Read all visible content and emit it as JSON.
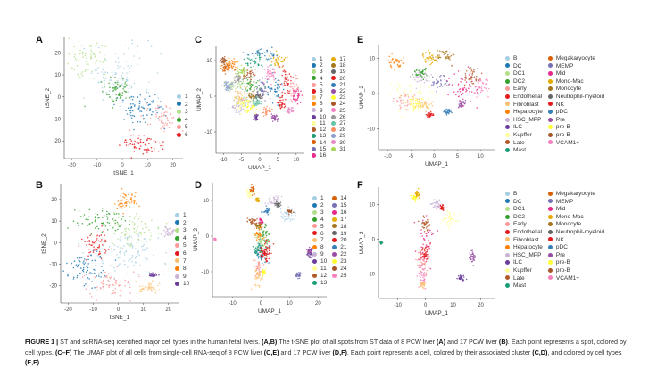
{
  "panels": {
    "A": "A",
    "B": "B",
    "C": "C",
    "D": "D",
    "E": "E",
    "F": "F"
  },
  "palette": [
    "#a6cee3",
    "#1f78b4",
    "#b2df8a",
    "#33a02c",
    "#fb9a99",
    "#e31a1c",
    "#fdbf6f",
    "#ff7f00",
    "#cab2d6",
    "#6a3d9a",
    "#ffff99",
    "#b15928",
    "#1b9e77",
    "#d95f02",
    "#7570b3",
    "#e7298a",
    "#e6ab02",
    "#a6761d",
    "#666666",
    "#e41a1c",
    "#377eb8",
    "#984ea3",
    "#ffff33",
    "#a65628",
    "#f781bf",
    "#999999",
    "#66c2a5",
    "#fc8d62",
    "#8da0cb",
    "#e78ac3",
    "#a6d854"
  ],
  "legends": {
    "A": [
      "1",
      "2",
      "3",
      "4",
      "5",
      "6"
    ],
    "B": [
      "1",
      "2",
      "3",
      "4",
      "5",
      "6",
      "7",
      "8",
      "9",
      "10"
    ],
    "C": [
      "1",
      "2",
      "3",
      "4",
      "5",
      "6",
      "7",
      "8",
      "9",
      "10",
      "11",
      "12",
      "13",
      "14",
      "15",
      "16",
      "17",
      "18",
      "19",
      "20",
      "21",
      "22",
      "23",
      "24",
      "25",
      "26",
      "27",
      "28",
      "29",
      "30",
      "31"
    ],
    "D": [
      "1",
      "2",
      "3",
      "4",
      "5",
      "6",
      "7",
      "8",
      "9",
      "10",
      "11",
      "12",
      "13",
      "14",
      "15",
      "16",
      "17",
      "18",
      "19",
      "20",
      "21",
      "22",
      "23",
      "24",
      "25"
    ],
    "E": [
      "B",
      "DC",
      "DC1",
      "DC2",
      "Early",
      "Endothelial",
      "Fibroblast",
      "Hepatocyte",
      "HSC_MPP",
      "ILC",
      "Kupffer",
      "Late",
      "Mast",
      "Megakaryocyte",
      "MEMP",
      "Mid",
      "Mono-Mac",
      "Monocyte",
      "Neutrophil-myeloid",
      "NK",
      "pDC",
      "Pre",
      "pre-B",
      "pro-B",
      "VCAM1+"
    ],
    "F": [
      "B",
      "DC",
      "DC1",
      "DC2",
      "Early",
      "Endothelial",
      "Fibroblast",
      "Hepatocyte",
      "HSC_MPP",
      "ILC",
      "Kupffer",
      "Late",
      "Mast",
      "Megakaryocyte",
      "MEMP",
      "Mid",
      "Mono-Mac",
      "Monocyte",
      "Neutrophil-myeloid",
      "NK",
      "pDC",
      "Pre",
      "pre-B",
      "pro-B",
      "VCAM1+"
    ]
  },
  "chart_data": [
    {
      "panel": "A",
      "type": "scatter",
      "xlabel": "tSNE_1",
      "ylabel": "tSNE_2",
      "xlim": [
        -23,
        24
      ],
      "ylim": [
        -28,
        27
      ],
      "xticks": [
        -20,
        -10,
        0,
        10,
        20
      ],
      "yticks": [
        -20,
        -10,
        0,
        10,
        20
      ],
      "clusters": [
        [
          "1",
          -2,
          10,
          7,
          7
        ],
        [
          "2",
          8,
          -5,
          5,
          4
        ],
        [
          "3",
          -14,
          18,
          4,
          4
        ],
        [
          "4",
          -2,
          3,
          3,
          3
        ],
        [
          "5",
          17,
          -10,
          4,
          3
        ],
        [
          "6",
          8,
          -22,
          4,
          3
        ]
      ]
    },
    {
      "panel": "B",
      "type": "scatter",
      "xlabel": "tSNE_1",
      "ylabel": "tSNE_2",
      "xlim": [
        -23,
        24
      ],
      "ylim": [
        -28,
        27
      ],
      "xticks": [
        -20,
        -10,
        0,
        10,
        20
      ],
      "yticks": [
        -20,
        -10,
        0,
        10,
        20
      ],
      "clusters": [
        [
          "1",
          3,
          -5,
          7,
          6
        ],
        [
          "2",
          -12,
          -12,
          4,
          4
        ],
        [
          "3",
          6,
          7,
          5,
          4
        ],
        [
          "4",
          -8,
          10,
          5,
          3
        ],
        [
          "5",
          -3,
          -19,
          5,
          3
        ],
        [
          "6",
          -9,
          -1,
          3,
          3
        ],
        [
          "7",
          12,
          -21,
          2.5,
          1.2
        ],
        [
          "8",
          3,
          19,
          2.5,
          2
        ],
        [
          "9",
          20,
          5,
          1,
          1
        ],
        [
          "10",
          14,
          -15,
          0.8,
          0.5
        ]
      ]
    },
    {
      "panel": "C",
      "type": "scatter",
      "xlabel": "UMAP_1",
      "ylabel": "UMAP_2",
      "xlim": [
        -12,
        12
      ],
      "ylim": [
        -16,
        14
      ],
      "xticks": [
        -10,
        -5,
        0,
        5,
        10
      ],
      "yticks": [
        -10,
        0,
        10
      ],
      "clusters": [
        [
          "1",
          -4,
          -1,
          1.5,
          1.5
        ],
        [
          "2",
          4,
          2,
          1,
          2
        ],
        [
          "3",
          -7,
          3,
          1.5,
          1
        ],
        [
          "4",
          -2,
          3,
          1.2,
          1.2
        ],
        [
          "5",
          9,
          3,
          1,
          2
        ],
        [
          "6",
          7,
          5,
          0.8,
          2
        ],
        [
          "7",
          -5,
          0,
          1.5,
          1.2
        ],
        [
          "8",
          -8,
          9,
          1,
          0.8
        ],
        [
          "9",
          -6,
          -3,
          1.2,
          1
        ],
        [
          "10",
          -1,
          -6,
          0.5,
          0.5
        ],
        [
          "11",
          -4,
          -2,
          1.5,
          1
        ],
        [
          "12",
          -3,
          6,
          1,
          1
        ],
        [
          "13",
          -1,
          10,
          1.5,
          1
        ],
        [
          "14",
          -9,
          8,
          0.8,
          0.6
        ],
        [
          "15",
          1,
          2,
          1,
          1.5
        ],
        [
          "16",
          10,
          0,
          0.7,
          1
        ],
        [
          "17",
          5,
          10,
          1,
          0.8
        ],
        [
          "18",
          -2,
          0,
          0.6,
          0.6
        ],
        [
          "19",
          0,
          0,
          0.5,
          0.5
        ],
        [
          "20",
          6,
          -2,
          0.6,
          0.8
        ],
        [
          "21",
          1,
          12,
          2,
          0.8
        ],
        [
          "22",
          4,
          -6,
          0.5,
          0.5
        ],
        [
          "23",
          -3,
          -3,
          1,
          1
        ],
        [
          "24",
          -10,
          10,
          0.5,
          0.5
        ],
        [
          "25",
          3,
          6,
          0.8,
          1.2
        ],
        [
          "26",
          -6,
          5,
          0.6,
          0.6
        ],
        [
          "27",
          -1,
          -2,
          0.6,
          0.6
        ],
        [
          "28",
          2,
          -4,
          0.6,
          0.6
        ],
        [
          "29",
          -9,
          3,
          0.8,
          0.8
        ],
        [
          "30",
          8,
          -4,
          0.5,
          0.5
        ],
        [
          "31",
          -5,
          7,
          0.6,
          0.6
        ]
      ]
    },
    {
      "panel": "D",
      "type": "scatter",
      "xlabel": "UMAP_1",
      "ylabel": "UMAP_2",
      "xlim": [
        -17,
        23
      ],
      "ylim": [
        -17,
        15
      ],
      "xticks": [
        -10,
        0,
        10,
        20
      ],
      "yticks": [
        -10,
        0,
        10
      ],
      "clusters": [
        [
          "1",
          9,
          6,
          1.5,
          1
        ],
        [
          "2",
          0,
          -6,
          1.2,
          2
        ],
        [
          "3",
          0,
          -1,
          1,
          1.5
        ],
        [
          "4",
          1,
          0,
          1,
          2
        ],
        [
          "5",
          -1,
          -9,
          0.8,
          1.5
        ],
        [
          "6",
          2,
          -4,
          0.8,
          1.5
        ],
        [
          "7",
          -1,
          -12,
          0.8,
          1.5
        ],
        [
          "8",
          -1,
          1,
          0.8,
          1.5
        ],
        [
          "9",
          4,
          10,
          1.2,
          0.8
        ],
        [
          "10",
          17,
          -5,
          0.6,
          0.8
        ],
        [
          "11",
          -4,
          12,
          0.6,
          0.6
        ],
        [
          "12",
          -3,
          4,
          0.8,
          0.5
        ],
        [
          "13",
          -1,
          -4,
          0.8,
          0.8
        ],
        [
          "14",
          -3,
          13,
          0.5,
          0.5
        ],
        [
          "15",
          13,
          -11,
          0.6,
          0.4
        ],
        [
          "16",
          0,
          4,
          0.3,
          0.4
        ],
        [
          "17",
          -1,
          10,
          0.4,
          0.3
        ],
        [
          "18",
          -1,
          3,
          0.5,
          0.4
        ],
        [
          "19",
          6,
          9,
          0.4,
          0.4
        ],
        [
          "20",
          1,
          -5,
          0.8,
          0.8
        ],
        [
          "21",
          2,
          7,
          0.6,
          0.5
        ],
        [
          "22",
          17,
          -4,
          0.4,
          0.4
        ],
        [
          "23",
          1,
          -10,
          0.3,
          0.3
        ],
        [
          "24",
          10,
          7,
          0.4,
          0.3
        ],
        [
          "25",
          -16,
          -1,
          0.2,
          0.2
        ]
      ]
    },
    {
      "panel": "E",
      "type": "scatter",
      "xlabel": "UMAP_1",
      "ylabel": "UMAP_2",
      "xlim": [
        -12,
        13
      ],
      "ylim": [
        -16,
        14
      ],
      "xticks": [
        -10,
        -5,
        0,
        5,
        10
      ],
      "yticks": [
        -10,
        0,
        10
      ],
      "clusters": [
        [
          "Kupffer",
          -5,
          0,
          2.5,
          2
        ],
        [
          "HSC_MPP",
          -3,
          5,
          1,
          1
        ],
        [
          "Mid",
          6,
          2,
          2,
          2.5
        ],
        [
          "Late",
          8,
          5,
          1,
          1.5
        ],
        [
          "Early",
          -6,
          -2,
          1.5,
          1.2
        ],
        [
          "Hepatocyte",
          -8,
          9,
          1,
          1
        ],
        [
          "pre-B",
          -4,
          -3,
          1,
          1
        ],
        [
          "Mono-Mac",
          -1,
          10,
          1,
          1
        ],
        [
          "Monocyte",
          2,
          11,
          1,
          0.8
        ],
        [
          "VCAM1+",
          10,
          2,
          0.8,
          1.2
        ],
        [
          "MEMP",
          1,
          3,
          1,
          1
        ],
        [
          "NK",
          -1,
          -6,
          0.4,
          0.4
        ],
        [
          "DC2",
          -3,
          6,
          0.8,
          0.8
        ],
        [
          "Fibroblast",
          -2,
          -3,
          0.8,
          0.8
        ],
        [
          "pDC",
          3,
          -5,
          0.4,
          0.4
        ],
        [
          "Pre",
          6,
          -3,
          0.5,
          0.5
        ]
      ]
    },
    {
      "panel": "F",
      "type": "scatter",
      "xlabel": "UMAP_1",
      "ylabel": "UMAP_2",
      "xlim": [
        -17,
        25
      ],
      "ylim": [
        -17,
        15
      ],
      "xticks": [
        -10,
        0,
        10,
        20
      ],
      "yticks": [
        -10,
        0,
        10
      ],
      "clusters": [
        [
          "Mid",
          0,
          -1,
          1.5,
          3
        ],
        [
          "Early",
          -1,
          -7,
          1.2,
          2
        ],
        [
          "Late",
          0,
          4,
          0.8,
          1
        ],
        [
          "VCAM1+",
          -1,
          -11,
          0.8,
          1.5
        ],
        [
          "Kupffer",
          9,
          6,
          1.5,
          1
        ],
        [
          "HSC_MPP",
          4,
          10,
          1,
          0.8
        ],
        [
          "Endothelial",
          0,
          -4,
          0.8,
          1
        ],
        [
          "Pre",
          17,
          -5,
          0.6,
          0.8
        ],
        [
          "ILC",
          13,
          -11,
          0.6,
          0.4
        ],
        [
          "pre-B",
          -4,
          12,
          0.6,
          0.6
        ],
        [
          "Mono-Mac",
          -3,
          13,
          0.5,
          0.5
        ],
        [
          "Fibroblast",
          -1,
          -13,
          0.5,
          0.6
        ],
        [
          "Mast",
          -16,
          -1,
          0.2,
          0.2
        ],
        [
          "NK",
          6,
          9,
          0.4,
          0.4
        ]
      ]
    }
  ],
  "caption": {
    "fig": "FIGURE 1 |",
    "t1": " ST and scRNA-seq identified major cell types in the human fetal livers. ",
    "ab": "(A,B)",
    "t2": " The t-SNE plot of all spots from ST data of 8 PCW liver ",
    "a": "(A)",
    "t3": " and 17 PCW liver ",
    "b": "(B)",
    "t4": ". Each point represents a spot, colored by cell types. ",
    "cf": "(C–F)",
    "t5": " The UMAP plot of all cells from single-cell RNA-seq of 8 PCW liver ",
    "ce": "(C,E)",
    "t6": " and 17 PCW liver ",
    "df": "(D,F)",
    "t7": ". Each point represents a cell, colored by their associated cluster ",
    "cd": "(C,D)",
    "t8": ", and colored by cell types ",
    "ef": "(E,F)",
    "t9": "."
  }
}
